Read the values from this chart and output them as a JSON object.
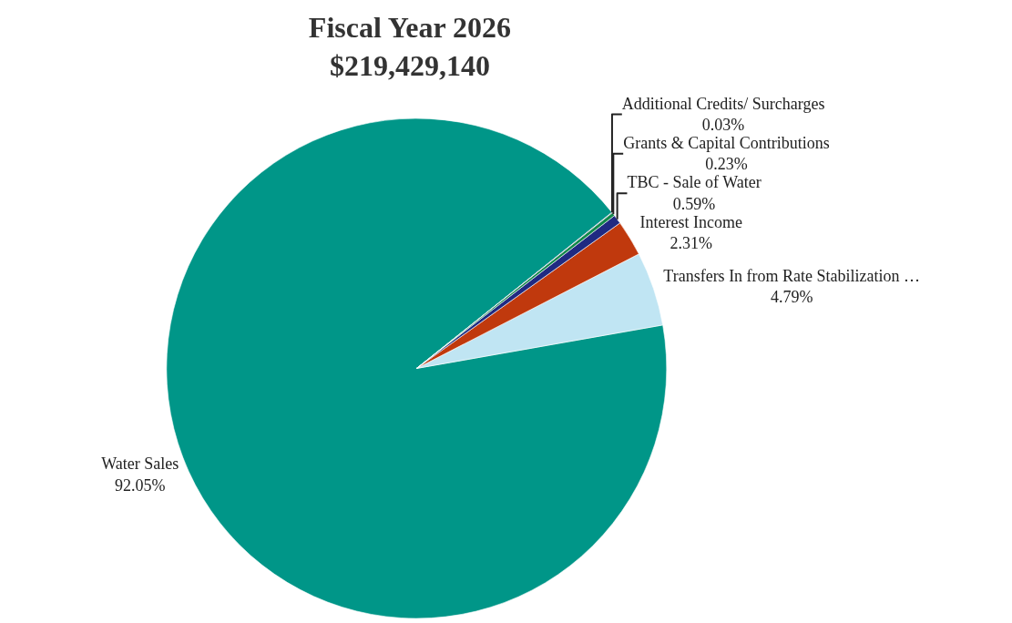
{
  "chart_data": {
    "type": "pie",
    "title": "Fiscal Year 2026\n$219,429,140",
    "categories": [
      "Water Sales",
      "Transfers In from Rate Stabilization …",
      "Interest Income",
      "TBC - Sale of Water",
      "Grants & Capital Contributions",
      "Additional Credits/ Surcharges"
    ],
    "values": [
      92.05,
      4.79,
      2.31,
      0.59,
      0.23,
      0.03
    ],
    "value_labels": [
      "92.05%",
      "4.79%",
      "2.31%",
      "0.59%",
      "0.23%",
      "0.03%"
    ],
    "colors": [
      "#009688",
      "#c0e5f3",
      "#c0390d",
      "#1f2a82",
      "#12894a",
      "#1b1f6b"
    ],
    "legend": false
  }
}
